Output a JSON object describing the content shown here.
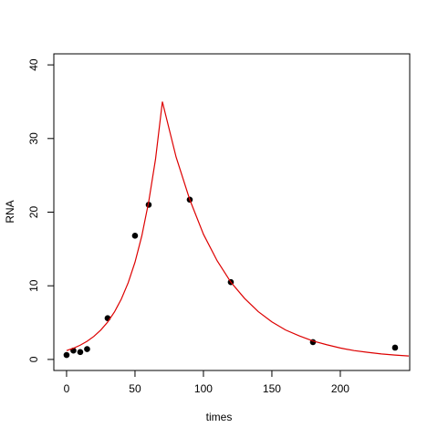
{
  "chart_data": {
    "type": "scatter",
    "xlabel": "times",
    "ylabel": "RNA",
    "xlim": [
      -9.3,
      250.7
    ],
    "ylim": [
      -1.5,
      41.5
    ],
    "xticks": [
      0,
      50,
      100,
      150,
      200
    ],
    "yticks": [
      0,
      10,
      20,
      30,
      40
    ],
    "series": [
      {
        "type": "scatter",
        "color": "#000000",
        "x": [
          0,
          5,
          10,
          15,
          30,
          50,
          60,
          90,
          120,
          180,
          240
        ],
        "values": [
          0.6,
          1.2,
          1.0,
          1.4,
          5.6,
          16.8,
          21.0,
          21.7,
          10.5,
          2.35,
          1.6
        ]
      },
      {
        "type": "line",
        "color": "#dd0000",
        "x": [
          0,
          5,
          10,
          15,
          20,
          25,
          30,
          35,
          40,
          45,
          50,
          55,
          60,
          65,
          70,
          80,
          90,
          100,
          110,
          120,
          130,
          140,
          150,
          160,
          170,
          180,
          190,
          200,
          210,
          220,
          230,
          240,
          250
        ],
        "values": [
          1.2,
          1.52,
          1.94,
          2.47,
          3.14,
          3.99,
          5.07,
          6.45,
          8.2,
          10.4,
          13.2,
          16.8,
          21.4,
          27.2,
          35,
          27.5,
          21.7,
          17.0,
          13.4,
          10.5,
          8.3,
          6.5,
          5.1,
          4.0,
          3.2,
          2.5,
          2.0,
          1.55,
          1.2,
          0.96,
          0.75,
          0.59,
          0.47
        ]
      }
    ]
  }
}
